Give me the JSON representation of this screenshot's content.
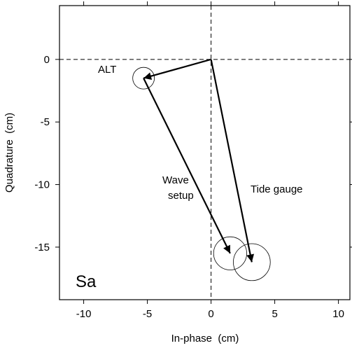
{
  "chart_data": {
    "type": "vector",
    "panel_label": "Sa",
    "x_label": "In-phase  (cm)",
    "y_label": "Quadrature  (cm)",
    "xlim": [
      -11.9,
      10.9
    ],
    "xticks": [
      -10,
      -5,
      0,
      5,
      10
    ],
    "ylim": [
      -19.2,
      4.3
    ],
    "yticks": [
      0,
      -5,
      -10,
      -15
    ],
    "zero_lines": true,
    "color": "#000000",
    "series": [
      {
        "name": [
          "ALT"
        ],
        "x0": 0,
        "y0": 0,
        "x": -5.3,
        "y": -1.5,
        "error": 0.85
      },
      {
        "name": [
          "Wave",
          "setup"
        ],
        "x0": -5.3,
        "y0": -1.5,
        "x": 1.5,
        "y": -15.5,
        "error": 1.3
      },
      {
        "name": [
          "Tide gauge"
        ],
        "x0": 0,
        "y0": 0,
        "x": 3.2,
        "y": -16.2,
        "error": 1.45
      }
    ]
  }
}
